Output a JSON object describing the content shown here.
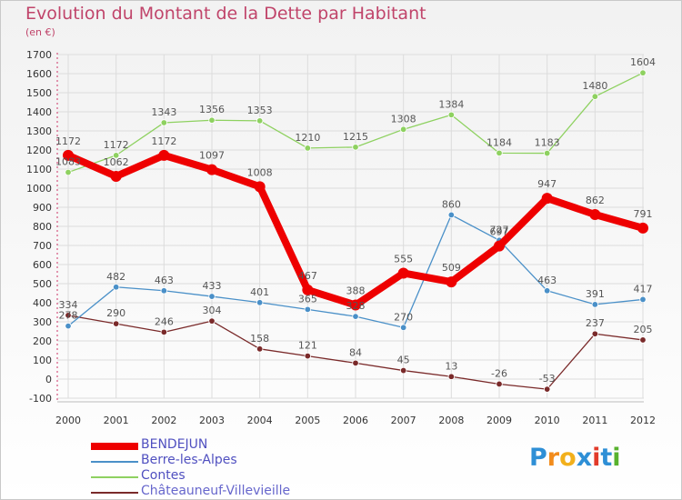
{
  "title": "Evolution du Montant de la Dette par Habitant",
  "unit": "(en €)",
  "logo": {
    "letters": [
      "P",
      "r",
      "o",
      "x",
      "i",
      "t",
      "i"
    ],
    "colors": [
      "#2e8fd6",
      "#f28c1c",
      "#f2b01c",
      "#2e8fd6",
      "#e23b2b",
      "#2e8fd6",
      "#58b22e"
    ]
  },
  "chart_data": {
    "type": "line",
    "title": "Evolution du Montant de la Dette par Habitant",
    "ylabel": "(en €)",
    "xlabel": "",
    "x": [
      "2000",
      "2001",
      "2002",
      "2003",
      "2004",
      "2005",
      "2006",
      "2007",
      "2008",
      "2009",
      "2010",
      "2011",
      "2012"
    ],
    "yticks": [
      "-100",
      "0",
      "100",
      "200",
      "300",
      "400",
      "500",
      "600",
      "700",
      "800",
      "900",
      "1000",
      "1100",
      "1200",
      "1300",
      "1400",
      "1500",
      "1600",
      "1700"
    ],
    "ylim": [
      -100,
      1700
    ],
    "grid": true,
    "legend": "bottom-left",
    "series": [
      {
        "name": "BENDEJUN",
        "color": "#ee0000",
        "values": [
          1172,
          1062,
          1172,
          1097,
          1008,
          467,
          388,
          555,
          509,
          697,
          947,
          862,
          791
        ],
        "labels": [
          "1172",
          "1062",
          "1172",
          "1097",
          "1008",
          "467",
          "388",
          "555",
          "509",
          "697",
          "947",
          "862",
          "791"
        ]
      },
      {
        "name": "Berre-les-Alpes",
        "color": "#4a90c8",
        "values": [
          278,
          482,
          463,
          433,
          401,
          365,
          328,
          270,
          860,
          727,
          463,
          391,
          417
        ],
        "labels": [
          "278",
          "482",
          "463",
          "433",
          "401",
          "365",
          "328",
          "270",
          "860",
          "727",
          "463",
          "391",
          "417"
        ]
      },
      {
        "name": "Contes",
        "color": "#8ed160",
        "values": [
          1083,
          1172,
          1343,
          1356,
          1353,
          1210,
          1215,
          1308,
          1384,
          1184,
          1183,
          1480,
          1604
        ],
        "labels": [
          "1083",
          "1172",
          "1343",
          "1356",
          "1353",
          "1210",
          "1215",
          "1308",
          "1384",
          "1184",
          "1183",
          "1480",
          "1604"
        ]
      },
      {
        "name": "Châteauneuf-Villevieille",
        "color": "#7a2a2a",
        "values": [
          334,
          290,
          246,
          304,
          158,
          121,
          84,
          45,
          13,
          -26,
          -53,
          237,
          205
        ],
        "labels": [
          "334",
          "290",
          "246",
          "304",
          "158",
          "121",
          "84",
          "45",
          "13",
          "-26",
          "-53",
          "237",
          "205"
        ]
      }
    ]
  }
}
